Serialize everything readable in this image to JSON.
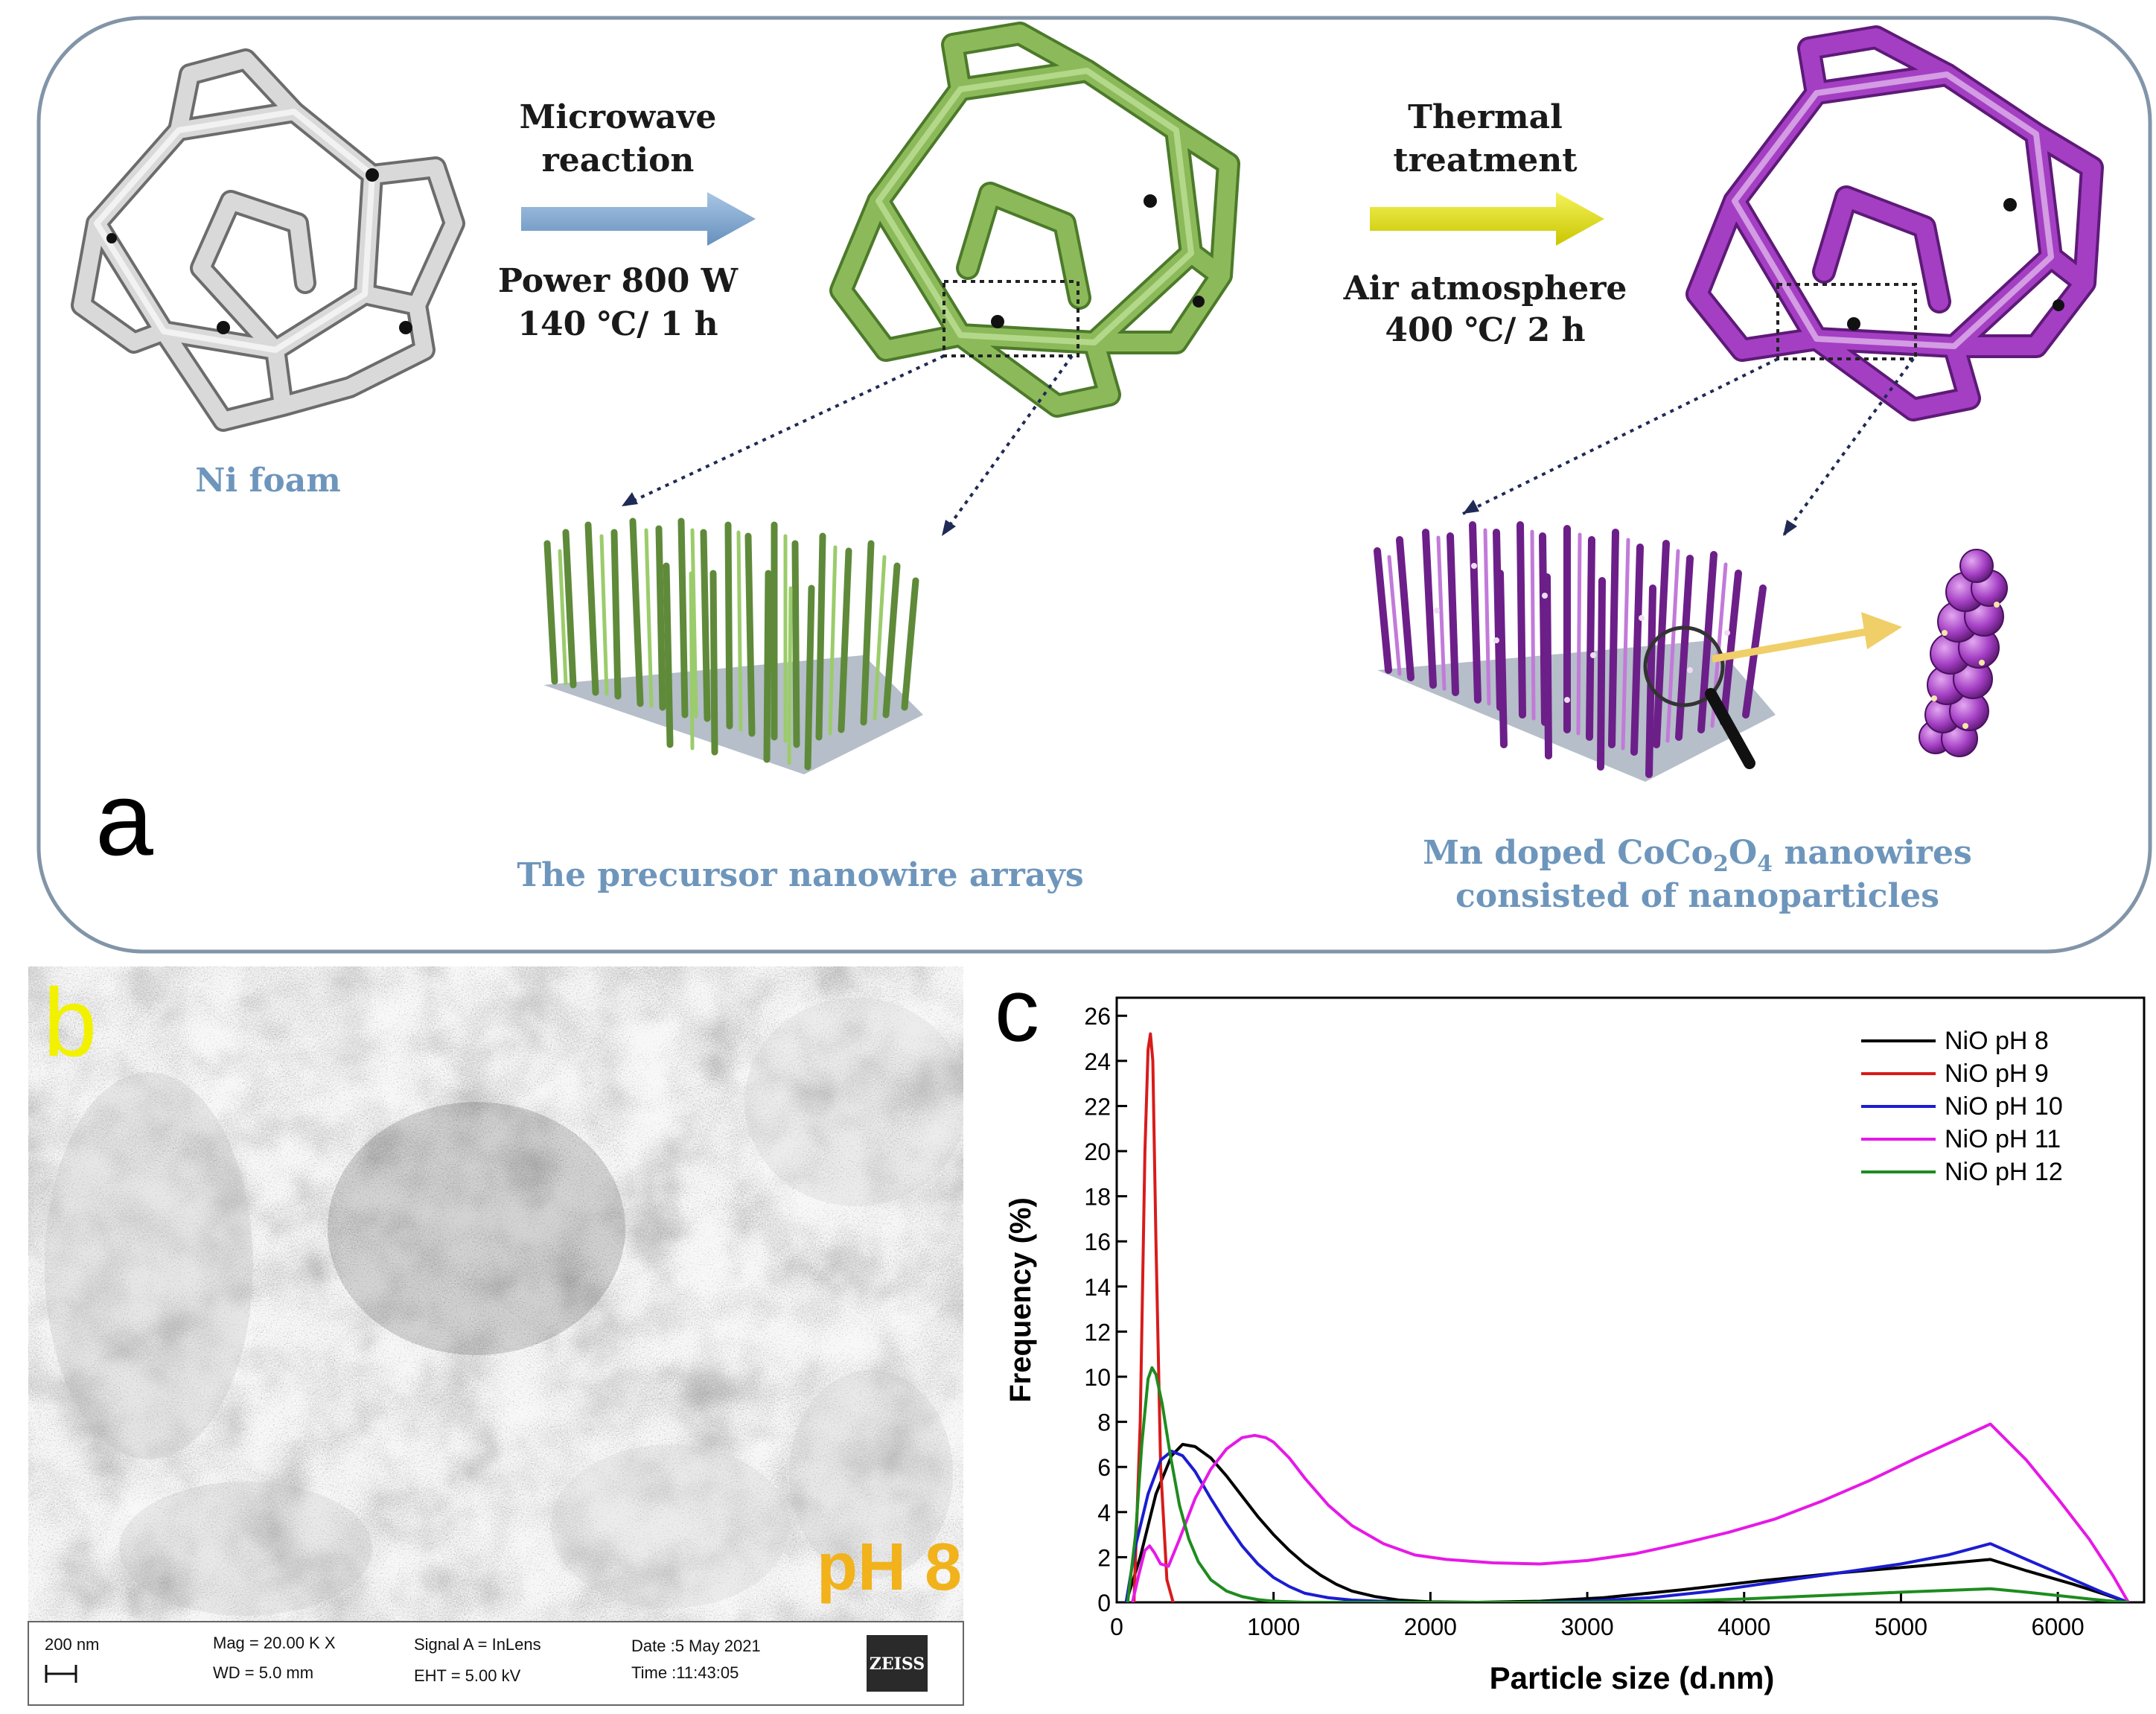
{
  "panel_a": {
    "letter": "a",
    "step1": {
      "title_line1": "Microwave",
      "title_line2": "reaction",
      "cond_line1": "Power 800 W",
      "cond_line2": "140 ℃/ 1 h"
    },
    "step2": {
      "title_line1": "Thermal",
      "title_line2": "treatment",
      "cond_line1": "Air atmosphere",
      "cond_line2": "400 ℃/ 2 h"
    },
    "label_nifoam": "Ni foam",
    "label_precursor": "The precursor nanowire arrays",
    "label_product_line1_pre": "Mn doped CoCo",
    "label_product_sub1": "2",
    "label_product_mid": "O",
    "label_product_sub2": "4",
    "label_product_post": " nanowires",
    "label_product_line2": "consisted of nanoparticles",
    "colors": {
      "nifoam": "#d4d4d4",
      "precursor": "#8cba5a",
      "product": "#a43fc4",
      "arrow1": "#7fa8d0",
      "arrow2": "#e3e10a",
      "caption": "#6e96bc"
    }
  },
  "panel_b": {
    "letter": "b",
    "ph_label": "pH 8",
    "scale": "200 nm",
    "mag": "Mag =  20.00 K X",
    "wd": "WD =  5.0 mm",
    "signal": "Signal A = InLens",
    "eht": "EHT =  5.00 kV",
    "date": "Date :5 May 2021",
    "time": "Time :11:43:05",
    "brand": "ZEISS"
  },
  "chart_data": {
    "type": "line",
    "letter": "c",
    "xlabel": "Particle size (d.nm)",
    "ylabel": "Frequency (%)",
    "xlim": [
      0,
      6550
    ],
    "ylim": [
      0,
      26.8
    ],
    "xticks": [
      0,
      1000,
      2000,
      3000,
      4000,
      5000,
      6000
    ],
    "yticks": [
      0,
      2,
      4,
      6,
      8,
      10,
      12,
      14,
      16,
      18,
      20,
      22,
      24,
      26
    ],
    "legend_position": "top-right",
    "series": [
      {
        "name": "NiO pH 8",
        "color": "#000000",
        "x": [
          60,
          150,
          250,
          350,
          420,
          500,
          600,
          700,
          800,
          900,
          1000,
          1100,
          1200,
          1300,
          1400,
          1500,
          1650,
          1800,
          2000,
          2300,
          2700,
          3100,
          3600,
          4100,
          4600,
          5100,
          5570,
          5800,
          6100,
          6300,
          6450
        ],
        "y": [
          0,
          2,
          4.8,
          6.5,
          7.0,
          6.9,
          6.4,
          5.6,
          4.7,
          3.8,
          3.0,
          2.3,
          1.7,
          1.2,
          0.8,
          0.5,
          0.25,
          0.1,
          0.02,
          0,
          0.05,
          0.2,
          0.55,
          0.95,
          1.3,
          1.6,
          1.9,
          1.4,
          0.8,
          0.35,
          0
        ]
      },
      {
        "name": "NiO pH 9",
        "color": "#d81b1b",
        "x": [
          110,
          150,
          180,
          200,
          215,
          230,
          250,
          280,
          320,
          360
        ],
        "y": [
          0,
          8,
          20,
          24.5,
          25.2,
          24,
          16,
          6,
          1,
          0
        ]
      },
      {
        "name": "NiO pH 10",
        "color": "#1c1cd2",
        "x": [
          60,
          120,
          200,
          280,
          350,
          420,
          500,
          600,
          700,
          800,
          900,
          1000,
          1100,
          1200,
          1350,
          1500,
          1700,
          1900,
          2200,
          2600,
          3000,
          3400,
          3800,
          4200,
          4600,
          5000,
          5300,
          5570,
          5800,
          6100,
          6300,
          6450
        ],
        "y": [
          0,
          2.5,
          4.8,
          6.3,
          6.7,
          6.5,
          5.8,
          4.6,
          3.5,
          2.5,
          1.7,
          1.1,
          0.7,
          0.4,
          0.2,
          0.1,
          0.04,
          0,
          0,
          0,
          0.05,
          0.2,
          0.5,
          0.9,
          1.3,
          1.7,
          2.1,
          2.6,
          1.9,
          1.0,
          0.4,
          0
        ]
      },
      {
        "name": "NiO pH 11",
        "color": "#e619e6",
        "x": [
          100,
          140,
          180,
          210,
          240,
          280,
          330,
          400,
          500,
          600,
          700,
          800,
          880,
          950,
          1000,
          1100,
          1200,
          1350,
          1500,
          1700,
          1900,
          2100,
          2400,
          2700,
          3000,
          3300,
          3600,
          3900,
          4200,
          4500,
          4800,
          5100,
          5350,
          5570,
          5800,
          6000,
          6200,
          6350,
          6450
        ],
        "y": [
          0,
          1.2,
          2.3,
          2.5,
          2.2,
          1.7,
          1.6,
          2.8,
          4.6,
          5.9,
          6.8,
          7.3,
          7.4,
          7.3,
          7.1,
          6.4,
          5.5,
          4.3,
          3.4,
          2.6,
          2.1,
          1.9,
          1.75,
          1.7,
          1.85,
          2.15,
          2.6,
          3.1,
          3.7,
          4.5,
          5.4,
          6.4,
          7.2,
          7.9,
          6.3,
          4.6,
          2.8,
          1.2,
          0
        ]
      },
      {
        "name": "NiO pH 12",
        "color": "#1e8c1e",
        "x": [
          70,
          120,
          160,
          200,
          225,
          250,
          290,
          340,
          400,
          460,
          520,
          600,
          700,
          800,
          900,
          1000,
          1200,
          1500,
          2000,
          3000,
          3500,
          4000,
          4500,
          5000,
          5570,
          5800,
          6000,
          6200,
          6350,
          6450
        ],
        "y": [
          0,
          3,
          7,
          9.9,
          10.4,
          10.1,
          8.8,
          6.6,
          4.3,
          2.8,
          1.8,
          1.0,
          0.5,
          0.25,
          0.12,
          0.05,
          0,
          0,
          0,
          0,
          0.05,
          0.15,
          0.3,
          0.45,
          0.6,
          0.45,
          0.3,
          0.15,
          0.05,
          0
        ]
      }
    ]
  }
}
